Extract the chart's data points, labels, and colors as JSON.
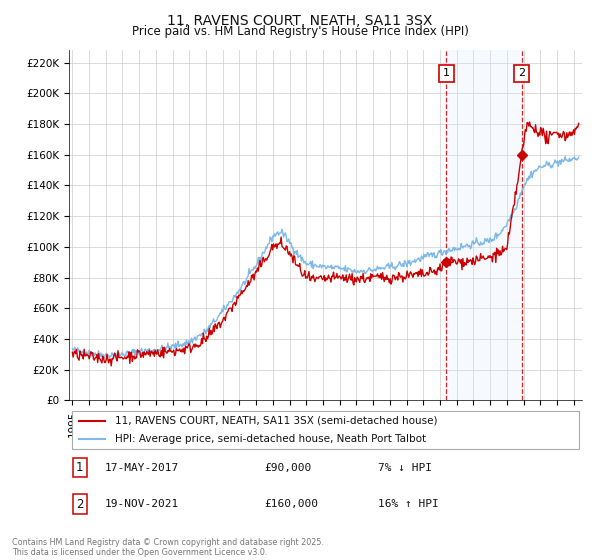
{
  "title": "11, RAVENS COURT, NEATH, SA11 3SX",
  "subtitle": "Price paid vs. HM Land Registry's House Price Index (HPI)",
  "ylabel_ticks": [
    "£0",
    "£20K",
    "£40K",
    "£60K",
    "£80K",
    "£100K",
    "£120K",
    "£140K",
    "£160K",
    "£180K",
    "£200K",
    "£220K"
  ],
  "ytick_values": [
    0,
    20000,
    40000,
    60000,
    80000,
    100000,
    120000,
    140000,
    160000,
    180000,
    200000,
    220000
  ],
  "ylim": [
    0,
    228000
  ],
  "xlim_start": 1994.8,
  "xlim_end": 2025.5,
  "red_line_color": "#cc0000",
  "blue_line_color": "#7db8e8",
  "vline_color": "#cc0000",
  "sale1_x": 2017.37,
  "sale1_y": 90000,
  "sale1_label": "1",
  "sale1_date": "17-MAY-2017",
  "sale1_price": "£90,000",
  "sale1_hpi": "7% ↓ HPI",
  "sale2_x": 2021.9,
  "sale2_y": 160000,
  "sale2_label": "2",
  "sale2_date": "19-NOV-2021",
  "sale2_price": "£160,000",
  "sale2_hpi": "16% ↑ HPI",
  "legend_line1": "11, RAVENS COURT, NEATH, SA11 3SX (semi-detached house)",
  "legend_line2": "HPI: Average price, semi-detached house, Neath Port Talbot",
  "footer": "Contains HM Land Registry data © Crown copyright and database right 2025.\nThis data is licensed under the Open Government Licence v3.0.",
  "background_color": "#ffffff",
  "grid_color": "#cccccc",
  "span_color": "#ddeeff",
  "title_fontsize": 10,
  "subtitle_fontsize": 8.5,
  "tick_fontsize": 7.5
}
